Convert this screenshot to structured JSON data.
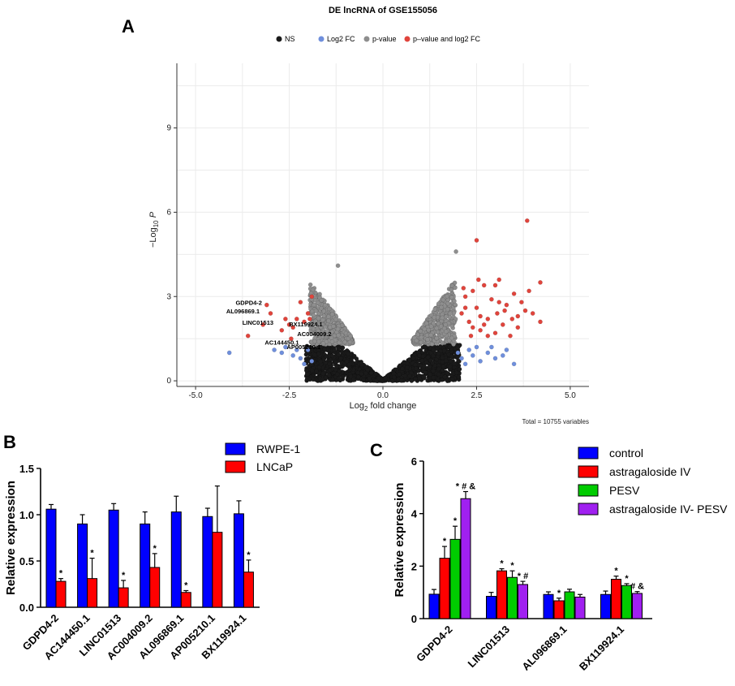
{
  "chart_data": [
    {
      "panel": "A",
      "type": "scatter",
      "title": "DE lncRNA of GSE155056",
      "xlabel": "Log2 fold change",
      "ylabel": "-Log10 P",
      "xlim": [
        -5.5,
        5.5
      ],
      "ylim": [
        -0.2,
        11.3
      ],
      "xticks": [
        -5.0,
        -2.5,
        0.0,
        2.5,
        5.0
      ],
      "xtick_labels": [
        "-5.0",
        "-2.5",
        "0.0",
        "2.5",
        "5.0"
      ],
      "yticks": [
        0,
        3,
        6,
        9
      ],
      "yticks_labels": [
        "0",
        "3",
        "6",
        "9"
      ],
      "legend": [
        {
          "label": "NS",
          "color": "#1a1a1a"
        },
        {
          "label": "Log2 FC",
          "color": "#6f8fdc"
        },
        {
          "label": "p-value",
          "color": "#8e8e8e"
        },
        {
          "label": "p–value and log2 FC",
          "color": "#e0443c"
        }
      ],
      "footer": "Total = 10755 variables",
      "labeled_genes": [
        {
          "label": "GDPD4-2",
          "x": -3.0,
          "y": 2.7
        },
        {
          "label": "AL096869.1",
          "x": -3.1,
          "y": 2.4
        },
        {
          "label": "LINC01513",
          "x": -2.8,
          "y": 2.0
        },
        {
          "label": "BX119924.1",
          "x": -2.55,
          "y": 1.85
        },
        {
          "label": "AC004009.2",
          "x": -2.2,
          "y": 1.65
        },
        {
          "label": "AC144450.1",
          "x": -2.2,
          "y": 1.4
        },
        {
          "label": "AP005210.1",
          "x": -2.35,
          "y": 1.3
        }
      ],
      "sig_up": [
        [
          2.1,
          2.4
        ],
        [
          2.2,
          3.0
        ],
        [
          2.3,
          2.1
        ],
        [
          2.4,
          3.2
        ],
        [
          2.5,
          2.6
        ],
        [
          2.6,
          1.8
        ],
        [
          2.7,
          3.4
        ],
        [
          2.8,
          2.2
        ],
        [
          2.9,
          2.9
        ],
        [
          3.0,
          1.7
        ],
        [
          3.1,
          3.6
        ],
        [
          3.2,
          2.0
        ],
        [
          3.3,
          2.7
        ],
        [
          3.4,
          1.6
        ],
        [
          3.5,
          3.1
        ],
        [
          3.6,
          2.3
        ],
        [
          3.7,
          2.8
        ],
        [
          3.8,
          2.5
        ],
        [
          3.9,
          3.2
        ],
        [
          4.0,
          2.4
        ],
        [
          4.2,
          2.1
        ],
        [
          4.2,
          3.5
        ],
        [
          3.85,
          5.7
        ],
        [
          2.5,
          5.0
        ],
        [
          3.0,
          3.4
        ],
        [
          2.2,
          2.6
        ],
        [
          2.35,
          1.6
        ],
        [
          2.6,
          2.3
        ],
        [
          2.8,
          1.6
        ],
        [
          3.25,
          2.5
        ],
        [
          3.45,
          2.2
        ],
        [
          3.05,
          2.4
        ],
        [
          2.4,
          1.9
        ],
        [
          2.7,
          2.0
        ],
        [
          3.1,
          2.8
        ],
        [
          3.6,
          1.9
        ],
        [
          2.15,
          3.3
        ],
        [
          2.55,
          3.6
        ]
      ],
      "sig_down": [
        [
          -1.9,
          3.0
        ],
        [
          -2.0,
          2.4
        ],
        [
          -2.1,
          2.1
        ],
        [
          -2.2,
          2.8
        ],
        [
          -2.3,
          2.2
        ],
        [
          -2.4,
          1.9
        ],
        [
          -2.5,
          2.0
        ],
        [
          -2.6,
          2.2
        ],
        [
          -2.7,
          1.8
        ],
        [
          -3.0,
          2.4
        ],
        [
          -3.1,
          2.7
        ],
        [
          -3.6,
          1.6
        ],
        [
          -3.2,
          2.0
        ],
        [
          -1.95,
          2.2
        ],
        [
          -2.45,
          1.5
        ]
      ],
      "fc_only": [
        [
          -4.1,
          1.0
        ],
        [
          -2.6,
          1.2
        ],
        [
          -2.4,
          0.9
        ],
        [
          -2.2,
          0.8
        ],
        [
          -2.1,
          0.6
        ],
        [
          -2.0,
          1.1
        ],
        [
          -1.9,
          0.7
        ],
        [
          -2.3,
          1.1
        ],
        [
          -2.7,
          1.0
        ],
        [
          -2.9,
          1.1
        ],
        [
          2.0,
          1.0
        ],
        [
          2.1,
          0.8
        ],
        [
          2.2,
          0.6
        ],
        [
          2.3,
          1.1
        ],
        [
          2.4,
          0.9
        ],
        [
          2.5,
          1.2
        ],
        [
          2.6,
          0.7
        ],
        [
          2.8,
          1.0
        ],
        [
          3.0,
          0.8
        ],
        [
          3.3,
          1.1
        ],
        [
          3.5,
          0.6
        ],
        [
          3.2,
          0.9
        ],
        [
          2.9,
          1.2
        ]
      ]
    },
    {
      "panel": "B",
      "type": "bar",
      "ylabel": "Relative expression",
      "ylim": [
        0,
        1.5
      ],
      "yticks": [
        "0.0",
        "0.5",
        "1.0",
        "1.5"
      ],
      "categories": [
        "GDPD4-2",
        "AC144450.1",
        "LINC01513",
        "AC004009.2",
        "AL096869.1",
        "AP005210.1",
        "BX119924.1"
      ],
      "series": [
        {
          "name": "RWPE-1",
          "color": "#0000ff",
          "values": [
            1.06,
            0.9,
            1.05,
            0.9,
            1.03,
            0.98,
            1.01
          ],
          "err": [
            0.05,
            0.1,
            0.07,
            0.13,
            0.17,
            0.09,
            0.14
          ]
        },
        {
          "name": "LNCaP",
          "color": "#ff0000",
          "values": [
            0.28,
            0.31,
            0.21,
            0.43,
            0.16,
            0.81,
            0.38
          ],
          "err": [
            0.03,
            0.22,
            0.08,
            0.15,
            0.02,
            0.5,
            0.13
          ]
        }
      ],
      "stars": [
        "*",
        "*",
        "*",
        "*",
        "*",
        "",
        "*"
      ]
    },
    {
      "panel": "C",
      "type": "bar",
      "ylabel": "Relative expression",
      "ylim": [
        0,
        6
      ],
      "yticks": [
        "0",
        "2",
        "4",
        "6"
      ],
      "categories": [
        "GDPD4-2",
        "LINC01513",
        "AL096869.1",
        "BX119924.1"
      ],
      "series": [
        {
          "name": "control",
          "color": "#0000ff",
          "values": [
            0.93,
            0.85,
            0.92,
            0.92
          ],
          "err": [
            0.18,
            0.15,
            0.1,
            0.13
          ]
        },
        {
          "name": "astragaloside IV",
          "color": "#ff0000",
          "values": [
            2.3,
            1.82,
            0.68,
            1.5
          ],
          "err": [
            0.45,
            0.08,
            0.1,
            0.12
          ]
        },
        {
          "name": "PESV",
          "color": "#00cc00",
          "values": [
            3.02,
            1.57,
            1.02,
            1.26
          ],
          "err": [
            0.5,
            0.25,
            0.1,
            0.07
          ]
        },
        {
          "name": "astragaloside IV- PESV",
          "color": "#a020f0",
          "values": [
            4.57,
            1.3,
            0.82,
            0.96
          ],
          "err": [
            0.27,
            0.12,
            0.1,
            0.07
          ]
        }
      ],
      "marks": [
        [
          "",
          "*",
          "*",
          "* # &"
        ],
        [
          "",
          "*",
          "*",
          "* #"
        ],
        [
          "",
          "*",
          "",
          ""
        ],
        [
          "",
          "*",
          "*",
          "# &"
        ]
      ]
    }
  ],
  "labels": {
    "panel_a": "A",
    "panel_b": "B",
    "panel_c": "C"
  }
}
